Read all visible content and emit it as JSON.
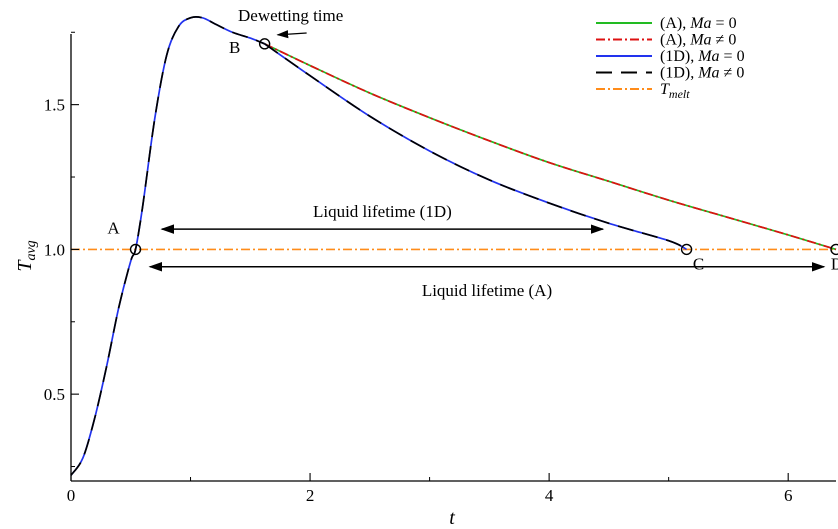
{
  "chart_data": {
    "type": "line",
    "title": "",
    "xlabel": "t",
    "ylabel": "T",
    "ylabel_sub": "avg",
    "xlim": [
      0,
      6.4
    ],
    "ylim": [
      0.2,
      1.82
    ],
    "xticks": [
      0,
      2,
      4,
      6
    ],
    "yticks": [
      0.5,
      1.0,
      1.5
    ],
    "xtick_labels": [
      "0",
      "2",
      "4",
      "6"
    ],
    "ytick_labels": [
      "0.5",
      "1.0",
      "1.5"
    ],
    "grid": false,
    "legend_placement": "top-right",
    "legend": [
      {
        "prefix": "(A), ",
        "var": "Ma",
        "rel": " = 0",
        "color": "#22bb22",
        "dash": "solid"
      },
      {
        "prefix": "(A), ",
        "var": "Ma",
        "rel": " ≠ 0",
        "color": "#dd1111",
        "dash": "dashdot"
      },
      {
        "prefix": "(1D), ",
        "var": "Ma",
        "rel": " = 0",
        "color": "#2233ee",
        "dash": "solid"
      },
      {
        "prefix": "(1D), ",
        "var": "Ma",
        "rel": " ≠ 0",
        "color": "#000000",
        "dash": "dashed"
      },
      {
        "prefix": "",
        "var": "T",
        "sub": "melt",
        "rel": "",
        "color": "#ff8c1a",
        "dash": "dashdot"
      }
    ],
    "series": [
      {
        "key": "rise",
        "x": [
          0,
          0.1,
          0.2,
          0.3,
          0.4,
          0.5,
          0.54,
          0.6,
          0.7,
          0.8,
          0.9,
          1.0,
          1.1,
          1.2,
          1.35,
          1.5,
          1.62
        ],
        "y": [
          0.22,
          0.28,
          0.42,
          0.6,
          0.8,
          0.96,
          1.0,
          1.15,
          1.45,
          1.67,
          1.77,
          1.8,
          1.8,
          1.78,
          1.75,
          1.73,
          1.71
        ]
      },
      {
        "key": "A",
        "x": [
          1.62,
          2.0,
          2.5,
          3.0,
          3.5,
          4.0,
          4.5,
          5.0,
          5.5,
          6.0,
          6.4
        ],
        "y": [
          1.71,
          1.635,
          1.54,
          1.455,
          1.375,
          1.3,
          1.235,
          1.17,
          1.11,
          1.05,
          1.0
        ]
      },
      {
        "key": "1D",
        "x": [
          1.62,
          2.0,
          2.5,
          3.0,
          3.5,
          4.0,
          4.5,
          5.0,
          5.15
        ],
        "y": [
          1.71,
          1.6,
          1.46,
          1.34,
          1.24,
          1.16,
          1.09,
          1.03,
          1.0
        ]
      }
    ],
    "melt_level": 1.0,
    "markers": [
      {
        "label": "A",
        "x": 0.54,
        "y": 1.0
      },
      {
        "label": "B",
        "x": 1.62,
        "y": 1.71
      },
      {
        "label": "C",
        "x": 5.15,
        "y": 1.0
      },
      {
        "label": "D",
        "x": 6.4,
        "y": 1.0
      }
    ],
    "annotations": {
      "dewetting": {
        "text": "Dewetting time",
        "x": 1.62,
        "y": 1.71
      },
      "lifetime_1d": {
        "text": "Liquid lifetime (1D)",
        "x0": 0.76,
        "x1": 4.45,
        "y": 1.07
      },
      "lifetime_a": {
        "text": "Liquid lifetime (A)",
        "x0": 0.66,
        "x1": 6.3,
        "y": 0.94
      }
    }
  }
}
